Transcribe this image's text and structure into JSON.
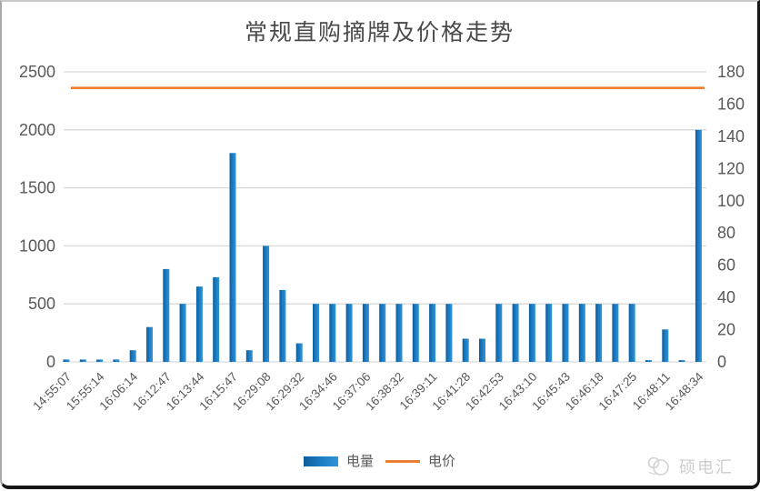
{
  "title": "常规直购摘牌及价格走势",
  "legend": {
    "power_label": "电量",
    "price_label": "电价"
  },
  "watermark": {
    "text": "硕电汇"
  },
  "colors": {
    "bar_dark": "#0f5c99",
    "bar_mid": "#1b7ac0",
    "bar_light": "#3094d8",
    "price_line": "#ED7D31",
    "grid": "#d9d9d9",
    "axis_text": "#595959",
    "title_text": "#4a4a4a",
    "watermark_text": "#cdcdcd"
  },
  "chart_data": {
    "type": "bar",
    "title": "常规直购摘牌及价格走势",
    "x_tick_labels": [
      "14:55:07",
      "15:55:14",
      "16:06:14",
      "16:12:47",
      "16:13:44",
      "16:15:47",
      "16:29:08",
      "16:29:32",
      "16:34:46",
      "16:37:06",
      "16:38:32",
      "16:39:11",
      "16:41:28",
      "16:42:53",
      "16:43:10",
      "16:45:43",
      "16:46:18",
      "16:47:25",
      "16:48:11",
      "16:48:34"
    ],
    "x_labels_apply_to_every_other_bar": true,
    "series": [
      {
        "name": "电量",
        "type": "bar",
        "axis": "left",
        "values": [
          20,
          20,
          20,
          20,
          100,
          300,
          800,
          500,
          650,
          730,
          1800,
          100,
          1000,
          620,
          160,
          500,
          500,
          500,
          500,
          500,
          500,
          500,
          500,
          500,
          200,
          200,
          500,
          500,
          500,
          500,
          500,
          500,
          500,
          500,
          500,
          15,
          280,
          15,
          2000
        ]
      },
      {
        "name": "电价",
        "type": "line",
        "axis": "right",
        "constant_value": 170
      }
    ],
    "y_left": {
      "min": 0,
      "max": 2500,
      "step": 500
    },
    "y_right": {
      "min": 0,
      "max": 180,
      "step": 20
    },
    "grid": "horizontal",
    "legend_position": "bottom"
  }
}
